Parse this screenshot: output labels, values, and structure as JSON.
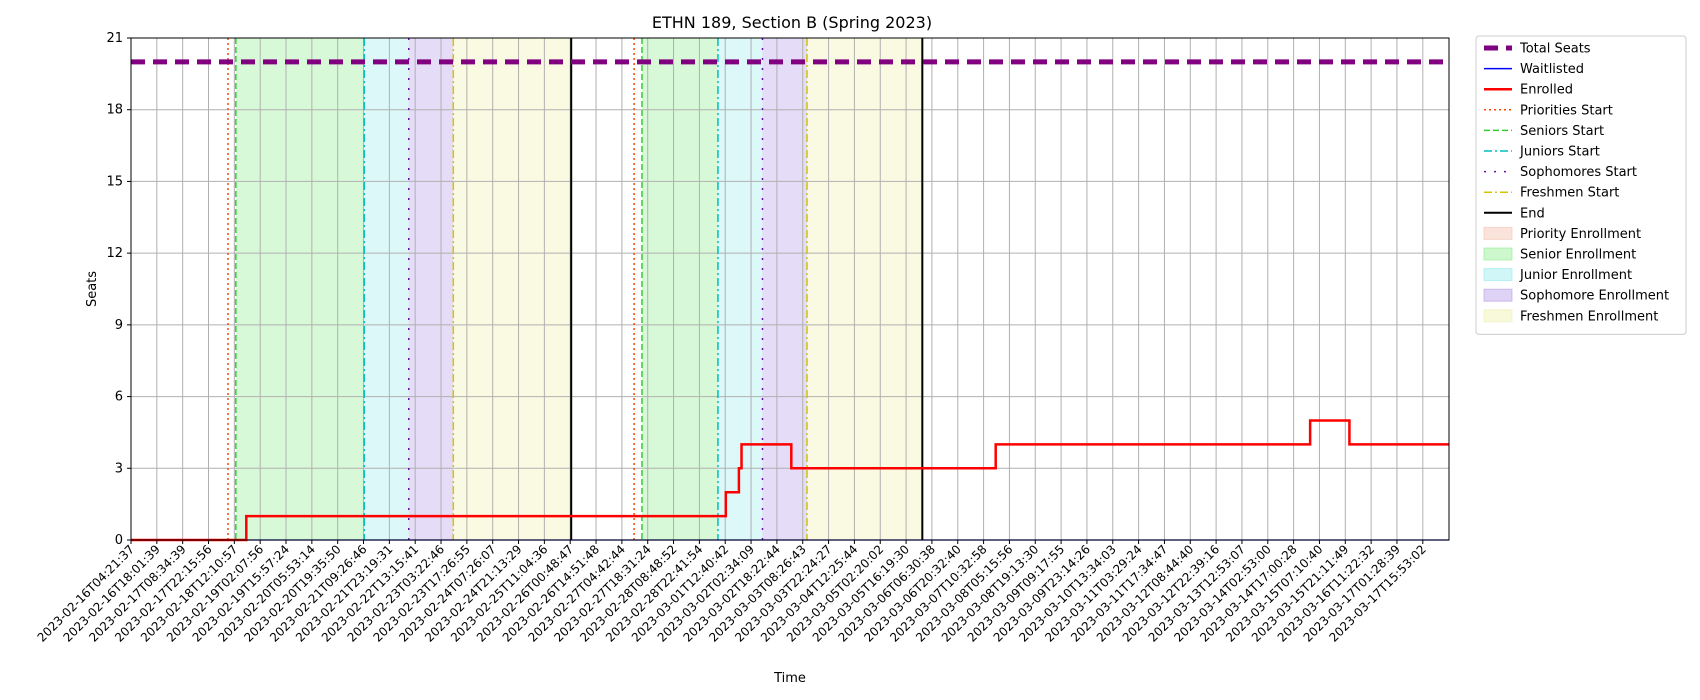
{
  "chart_data": {
    "type": "line",
    "title": "ETHN 189, Section B (Spring 2023)",
    "xlabel": "Time",
    "ylabel": "Seats",
    "ylim": [
      0,
      21
    ],
    "yticks": [
      0,
      3,
      6,
      9,
      12,
      15,
      18,
      21
    ],
    "grid": true,
    "legend_position": "outside-right",
    "xtick_labels": [
      "2023-02-16T04:21:37",
      "2023-02-16T18:01:39",
      "2023-02-17T08:34:39",
      "2023-02-17T22:15:56",
      "2023-02-18T12:10:57",
      "2023-02-19T02:07:56",
      "2023-02-19T15:57:24",
      "2023-02-20T05:53:14",
      "2023-02-20T19:35:50",
      "2023-02-21T09:26:46",
      "2023-02-21T23:19:31",
      "2023-02-22T13:15:41",
      "2023-02-23T03:22:46",
      "2023-02-23T17:26:55",
      "2023-02-24T07:26:07",
      "2023-02-24T21:13:29",
      "2023-02-25T11:04:36",
      "2023-02-26T00:48:47",
      "2023-02-26T14:51:48",
      "2023-02-27T04:42:44",
      "2023-02-27T18:31:24",
      "2023-02-28T08:48:52",
      "2023-02-28T22:41:54",
      "2023-03-01T12:40:42",
      "2023-03-02T02:34:09",
      "2023-03-02T18:22:44",
      "2023-03-03T08:26:43",
      "2023-03-03T22:24:27",
      "2023-03-04T12:25:44",
      "2023-03-05T02:20:02",
      "2023-03-05T16:19:30",
      "2023-03-06T06:30:38",
      "2023-03-06T20:32:40",
      "2023-03-07T10:32:58",
      "2023-03-08T05:15:56",
      "2023-03-08T19:13:30",
      "2023-03-09T09:17:55",
      "2023-03-09T23:14:26",
      "2023-03-10T13:34:03",
      "2023-03-11T03:29:24",
      "2023-03-11T17:34:47",
      "2023-03-12T08:44:40",
      "2023-03-12T22:39:16",
      "2023-03-13T12:53:07",
      "2023-03-14T02:53:00",
      "2023-03-14T17:00:28",
      "2023-03-15T07:10:40",
      "2023-03-15T21:11:49",
      "2023-03-16T11:22:32",
      "2023-03-17T01:28:39",
      "2023-03-17T15:53:02"
    ],
    "x_range_ticks": [
      0,
      50.3
    ],
    "series": [
      {
        "name": "Total Seats",
        "color": "#800080",
        "style": "dashed-thick",
        "points": [
          [
            0,
            20
          ],
          [
            50.3,
            20
          ]
        ]
      },
      {
        "name": "Waitlisted",
        "color": "#0000ff",
        "style": "solid-thin",
        "points": [
          [
            0,
            0
          ],
          [
            50.3,
            0
          ]
        ]
      },
      {
        "name": "Enrolled",
        "color": "#ff0000",
        "style": "solid-step",
        "points": [
          [
            0,
            0
          ],
          [
            4.4,
            0
          ],
          [
            4.4,
            1
          ],
          [
            22.7,
            1
          ],
          [
            22.7,
            2
          ],
          [
            23.2,
            2
          ],
          [
            23.2,
            3
          ],
          [
            23.3,
            3
          ],
          [
            23.3,
            4
          ],
          [
            25.2,
            4
          ],
          [
            25.2,
            3
          ],
          [
            33.0,
            3
          ],
          [
            33.0,
            4
          ],
          [
            45.0,
            4
          ],
          [
            45.0,
            5
          ],
          [
            46.5,
            5
          ],
          [
            46.5,
            4
          ],
          [
            50.3,
            4
          ]
        ]
      }
    ],
    "regions": [
      {
        "name": "Senior Enrollment",
        "color": "#90ee90",
        "from": 4.0,
        "to": 8.9
      },
      {
        "name": "Junior Enrollment",
        "color": "#9aeaee",
        "from": 8.9,
        "to": 10.6
      },
      {
        "name": "Sophomore Enrollment",
        "color": "#b59ce8",
        "from": 10.6,
        "to": 12.3
      },
      {
        "name": "Freshmen Enrollment",
        "color": "#f0f0b0",
        "from": 12.3,
        "to": 16.8
      },
      {
        "name": "Senior Enrollment",
        "color": "#90ee90",
        "from": 19.5,
        "to": 22.4
      },
      {
        "name": "Junior Enrollment",
        "color": "#9aeaee",
        "from": 22.4,
        "to": 24.1
      },
      {
        "name": "Sophomore Enrollment",
        "color": "#b59ce8",
        "from": 24.1,
        "to": 25.8
      },
      {
        "name": "Freshmen Enrollment",
        "color": "#f0f0b0",
        "from": 25.8,
        "to": 30.2
      }
    ],
    "vlines": [
      {
        "name": "Priorities Start",
        "color": "#ff4500",
        "style": "dotted",
        "x": [
          3.7,
          19.2
        ]
      },
      {
        "name": "Seniors Start",
        "color": "#32cd32",
        "style": "dashed",
        "x": [
          4.0,
          19.5
        ]
      },
      {
        "name": "Juniors Start",
        "color": "#00bfbf",
        "style": "dashdot",
        "x": [
          8.9,
          22.4
        ]
      },
      {
        "name": "Sophomores Start",
        "color": "#6a0dad",
        "style": "dashdot-sparse",
        "x": [
          10.6,
          24.1
        ]
      },
      {
        "name": "Freshmen Start",
        "color": "#d4c400",
        "style": "dashdot",
        "x": [
          12.3,
          25.8
        ]
      },
      {
        "name": "End",
        "color": "#000000",
        "style": "solid",
        "x": [
          16.8,
          30.2
        ]
      }
    ],
    "legend": [
      {
        "label": "Total Seats",
        "kind": "line",
        "color": "#800080",
        "style": "dashed-thick"
      },
      {
        "label": "Waitlisted",
        "kind": "line",
        "color": "#0000ff",
        "style": "solid-thin"
      },
      {
        "label": "Enrolled",
        "kind": "line",
        "color": "#ff0000",
        "style": "solid-thick"
      },
      {
        "label": "Priorities Start",
        "kind": "line",
        "color": "#ff4500",
        "style": "dotted"
      },
      {
        "label": "Seniors Start",
        "kind": "line",
        "color": "#32cd32",
        "style": "dashed"
      },
      {
        "label": "Juniors Start",
        "kind": "line",
        "color": "#00bfbf",
        "style": "dashdot"
      },
      {
        "label": "Sophomores Start",
        "kind": "line",
        "color": "#6a0dad",
        "style": "dashdot-sparse"
      },
      {
        "label": "Freshmen Start",
        "kind": "line",
        "color": "#d4c400",
        "style": "dashdot"
      },
      {
        "label": "End",
        "kind": "line",
        "color": "#000000",
        "style": "solid"
      },
      {
        "label": "Priority Enrollment",
        "kind": "patch",
        "color": "#f4c2b0"
      },
      {
        "label": "Senior Enrollment",
        "kind": "patch",
        "color": "#90ee90"
      },
      {
        "label": "Junior Enrollment",
        "kind": "patch",
        "color": "#9aeaee"
      },
      {
        "label": "Sophomore Enrollment",
        "kind": "patch",
        "color": "#b59ce8"
      },
      {
        "label": "Freshmen Enrollment",
        "kind": "patch",
        "color": "#f0f0b0"
      }
    ]
  }
}
